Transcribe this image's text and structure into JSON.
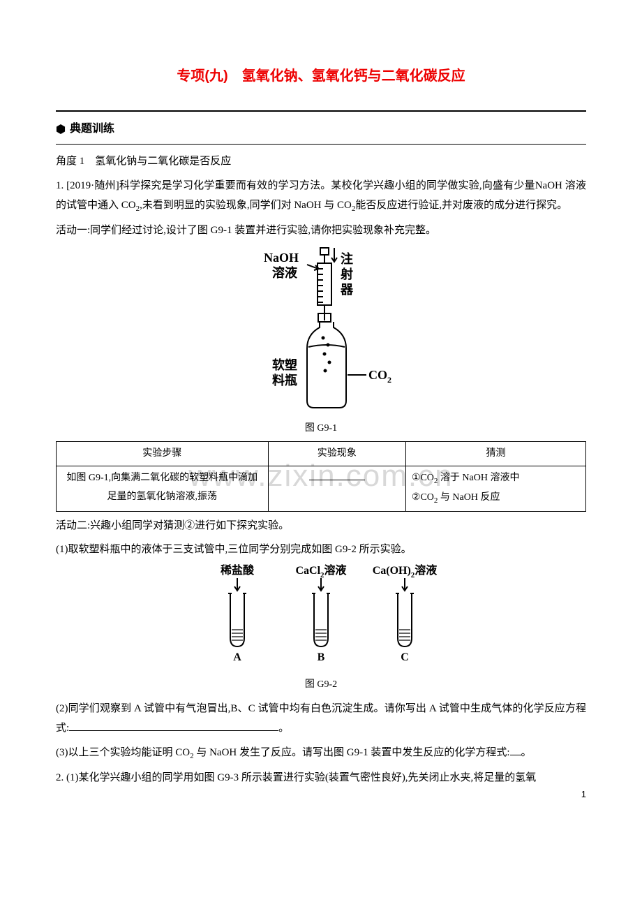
{
  "title": "专项(九)　氢氧化钠、氢氧化钙与二氧化碳反应",
  "section_marker_label": "典题训练",
  "angle_heading": "角度 1　氢氧化钠与二氧化碳是否反应",
  "q1_intro": "1. [2019·随州]科学探究是学习化学重要而有效的学习方法。某校化学兴趣小组的同学做实验,向盛有少量NaOH 溶液的试管中通入 CO",
  "q1_intro_tail": ",未看到明显的实验现象,同学们对 NaOH 与 CO",
  "q1_intro_end": "能否反应进行验证,并对废液的成分进行探究。",
  "activity1": "活动一:同学们经过讨论,设计了图 G9-1 装置并进行实验,请你把实验现象补充完整。",
  "fig1": {
    "labels": {
      "naoh": "NaOH",
      "solution": "溶液",
      "syringe_line1": "注",
      "syringe_line2": "射",
      "syringe_line3": "器",
      "bottle_line1": "软塑",
      "bottle_line2": "料瓶",
      "co2": "CO",
      "co2_sub": "2"
    },
    "caption": "图 G9-1",
    "colors": {
      "stroke": "#000000",
      "text": "#000000",
      "bg": "#ffffff"
    },
    "line_width": 2
  },
  "table": {
    "headers": [
      "实验步骤",
      "实验现象",
      "猜测"
    ],
    "col_widths": [
      "40%",
      "26%",
      "34%"
    ],
    "rows": [
      [
        "如图 G9-1,向集满二氧化碳的软塑料瓶中滴加足量的氢氧化钠溶液,振荡",
        "BLANK",
        [
          "①CO",
          "2",
          " 溶于 NaOH 溶液中",
          "②CO",
          "2",
          " 与 NaOH 反应"
        ]
      ]
    ]
  },
  "activity2": "活动二:兴趣小组同学对猜测②进行如下探究实验。",
  "q1_step1": "(1)取软塑料瓶中的液体于三支试管中,三位同学分别完成如图 G9-2 所示实验。",
  "fig2": {
    "tubes": [
      {
        "label": "稀盐酸",
        "tag": "A"
      },
      {
        "label": "CaCl",
        "label_sub": "2",
        "label_tail": "溶液",
        "tag": "B"
      },
      {
        "label": "Ca(OH)",
        "label_sub": "2",
        "label_tail": "溶液",
        "tag": "C"
      }
    ],
    "caption": "图 G9-2",
    "colors": {
      "stroke": "#000000",
      "text": "#000000"
    },
    "line_width": 2,
    "spacing": 120
  },
  "q1_step2_a": "(2)同学们观察到 A 试管中有气泡冒出,B、C 试管中均有白色沉淀生成。请你写出 A 试管中生成气体的化学反应方程式:",
  "q1_step2_end": "。",
  "q1_step3_a": "(3)以上三个实验均能证明 CO",
  "q1_step3_b": " 与 NaOH 发生了反应。请写出图 G9-1 装置中发生反应的化学方程式:",
  "q1_step3_end": "。",
  "q2": "2. (1)某化学兴趣小组的同学用如图 G9-3 所示装置进行实验(装置气密性良好),先关闭止水夹,将足量的氢氧",
  "watermark": "www.zixin.com.cn",
  "pagenum": "1",
  "style": {
    "title_color": "#ed0000",
    "body_color": "#000000",
    "watermark_color": "#d8d8d8",
    "bg": "#ffffff",
    "title_fontsize": 20,
    "body_fontsize": 15,
    "watermark_fontsize": 44
  }
}
